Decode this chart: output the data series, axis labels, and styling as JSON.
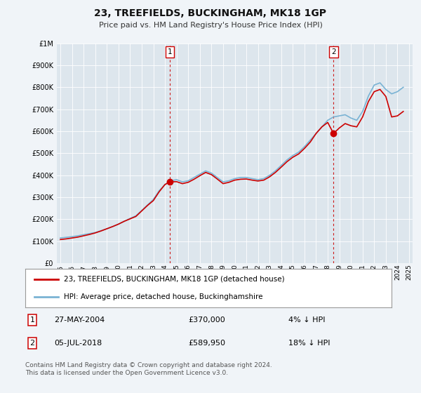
{
  "title": "23, TREEFIELDS, BUCKINGHAM, MK18 1GP",
  "subtitle": "Price paid vs. HM Land Registry's House Price Index (HPI)",
  "footer": "Contains HM Land Registry data © Crown copyright and database right 2024.\nThis data is licensed under the Open Government Licence v3.0.",
  "legend_line1": "23, TREEFIELDS, BUCKINGHAM, MK18 1GP (detached house)",
  "legend_line2": "HPI: Average price, detached house, Buckinghamshire",
  "sale1_label": "1",
  "sale1_date": "27-MAY-2004",
  "sale1_price": "£370,000",
  "sale1_hpi": "4% ↓ HPI",
  "sale2_label": "2",
  "sale2_date": "05-JUL-2018",
  "sale2_price": "£589,950",
  "sale2_hpi": "18% ↓ HPI",
  "sale1_year": 2004.42,
  "sale1_value": 370000,
  "sale2_year": 2018.5,
  "sale2_value": 589950,
  "hpi_color": "#7ab3d4",
  "price_color": "#cc0000",
  "dashed_line_color": "#cc0000",
  "background_color": "#f0f4f8",
  "plot_bg_color": "#dde6ed",
  "grid_color": "#ffffff",
  "ylim": [
    0,
    1000000
  ],
  "yticks": [
    0,
    100000,
    200000,
    300000,
    400000,
    500000,
    600000,
    700000,
    800000,
    900000,
    1000000
  ],
  "hpi_data_x": [
    1995,
    1995.5,
    1996,
    1996.5,
    1997,
    1997.5,
    1998,
    1998.5,
    1999,
    1999.5,
    2000,
    2000.5,
    2001,
    2001.5,
    2002,
    2002.5,
    2003,
    2003.5,
    2004,
    2004.5,
    2005,
    2005.5,
    2006,
    2006.5,
    2007,
    2007.5,
    2008,
    2008.5,
    2009,
    2009.5,
    2010,
    2010.5,
    2011,
    2011.5,
    2012,
    2012.5,
    2013,
    2013.5,
    2014,
    2014.5,
    2015,
    2015.5,
    2016,
    2016.5,
    2017,
    2017.5,
    2018,
    2018.5,
    2019,
    2019.5,
    2020,
    2020.5,
    2021,
    2021.5,
    2022,
    2022.5,
    2023,
    2023.5,
    2024,
    2024.5
  ],
  "hpi_data_y": [
    115000,
    118000,
    121000,
    125000,
    130000,
    135000,
    140000,
    148000,
    157000,
    167000,
    178000,
    191000,
    204000,
    216000,
    240000,
    265000,
    290000,
    330000,
    358000,
    375000,
    380000,
    370000,
    375000,
    390000,
    405000,
    420000,
    410000,
    390000,
    370000,
    375000,
    385000,
    390000,
    390000,
    385000,
    380000,
    385000,
    400000,
    420000,
    445000,
    470000,
    490000,
    505000,
    530000,
    560000,
    590000,
    620000,
    650000,
    665000,
    670000,
    675000,
    660000,
    650000,
    690000,
    760000,
    810000,
    820000,
    790000,
    770000,
    780000,
    800000
  ],
  "price_data_x": [
    1995,
    1995.5,
    1996,
    1996.5,
    1997,
    1997.5,
    1998,
    1998.5,
    1999,
    1999.5,
    2000,
    2000.5,
    2001,
    2001.5,
    2002,
    2002.5,
    2003,
    2003.5,
    2004,
    2004.42,
    2005,
    2005.5,
    2006,
    2006.5,
    2007,
    2007.5,
    2008,
    2008.5,
    2009,
    2009.5,
    2010,
    2010.5,
    2011,
    2011.5,
    2012,
    2012.5,
    2013,
    2013.5,
    2014,
    2014.5,
    2015,
    2015.5,
    2016,
    2016.5,
    2017,
    2017.5,
    2018,
    2018.5,
    2019,
    2019.5,
    2020,
    2020.5,
    2021,
    2021.5,
    2022,
    2022.5,
    2023,
    2023.5,
    2024,
    2024.5
  ],
  "price_data_y": [
    108000,
    111000,
    115000,
    119000,
    125000,
    131000,
    138000,
    147000,
    157000,
    167000,
    178000,
    191000,
    202000,
    213000,
    238000,
    263000,
    285000,
    325000,
    358000,
    370000,
    371000,
    362000,
    368000,
    382000,
    398000,
    413000,
    403000,
    383000,
    362000,
    368000,
    378000,
    382000,
    383000,
    378000,
    374000,
    378000,
    393000,
    413000,
    437000,
    462000,
    482000,
    497000,
    522000,
    551000,
    590000,
    620000,
    640000,
    590000,
    615000,
    635000,
    625000,
    620000,
    665000,
    735000,
    780000,
    790000,
    758000,
    665000,
    670000,
    690000
  ],
  "xtick_years": [
    1995,
    1996,
    1997,
    1998,
    1999,
    2000,
    2001,
    2002,
    2003,
    2004,
    2005,
    2006,
    2007,
    2008,
    2009,
    2010,
    2011,
    2012,
    2013,
    2014,
    2015,
    2016,
    2017,
    2018,
    2019,
    2020,
    2021,
    2022,
    2023,
    2024,
    2025
  ]
}
